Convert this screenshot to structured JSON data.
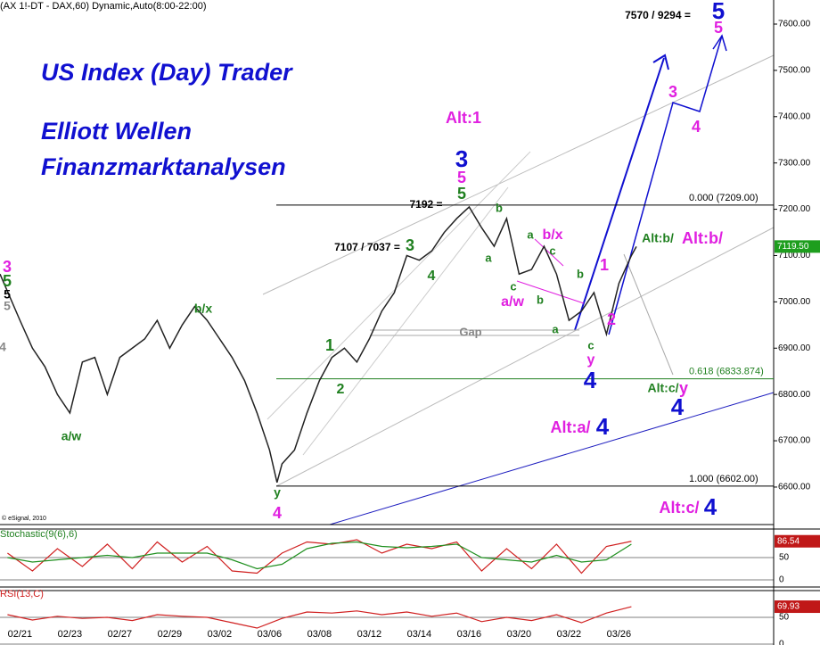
{
  "chart_data": {
    "type": "line",
    "header": "(AX 1!-DT - DAX,60) Dynamic,Auto(8:00-22:00)",
    "titles": [
      "US Index (Day) Trader",
      "Elliott Wellen",
      "Finanzmarktanalysen"
    ],
    "copyright": "© eSignal, 2010",
    "xlim": [
      -0.8,
      30.2
    ],
    "xticks": [
      {
        "value": 0,
        "label": "02/21"
      },
      {
        "value": 2,
        "label": "02/23"
      },
      {
        "value": 4,
        "label": "02/27"
      },
      {
        "value": 6,
        "label": "02/29"
      },
      {
        "value": 8,
        "label": "03/02"
      },
      {
        "value": 10,
        "label": "03/06"
      },
      {
        "value": 12,
        "label": "03/08"
      },
      {
        "value": 14,
        "label": "03/12"
      },
      {
        "value": 16,
        "label": "03/14"
      },
      {
        "value": 18,
        "label": "03/16"
      },
      {
        "value": 20,
        "label": "03/20"
      },
      {
        "value": 22,
        "label": "03/22"
      },
      {
        "value": 24,
        "label": "03/26"
      }
    ],
    "ylim": [
      6519,
      7652
    ],
    "yticks": [
      {
        "value": 6600,
        "label": "6600.00"
      },
      {
        "value": 6700,
        "label": "6700.00"
      },
      {
        "value": 6800,
        "label": "6800.00"
      },
      {
        "value": 6900,
        "label": "6900.00"
      },
      {
        "value": 7000,
        "label": "7000.00"
      },
      {
        "value": 7100,
        "label": "7100.00"
      },
      {
        "value": 7200,
        "label": "7200.00"
      },
      {
        "value": 7300,
        "label": "7300.00"
      },
      {
        "value": 7400,
        "label": "7400.00"
      },
      {
        "value": 7500,
        "label": "7500.00"
      },
      {
        "value": 7600,
        "label": "7600.00"
      }
    ],
    "series": [
      {
        "name": "DAX",
        "color": "#222222",
        "x": [
          -0.8,
          0,
          0.5,
          1,
          1.5,
          2,
          2.5,
          3,
          3.5,
          4,
          5,
          5.5,
          6,
          6.5,
          7,
          7.5,
          8,
          8.5,
          9,
          9.5,
          10,
          10.3,
          10.5,
          11,
          11.5,
          12,
          12.5,
          13,
          13.5,
          14,
          14.5,
          15,
          15.5,
          16,
          16.5,
          17,
          17.5,
          18,
          18.5,
          19,
          19.5,
          20,
          20.5,
          21,
          21.5,
          22,
          22.5,
          23,
          23.5,
          24,
          24.5,
          24.7
        ],
        "values": [
          7060,
          6960,
          6900,
          6860,
          6800,
          6760,
          6870,
          6880,
          6800,
          6880,
          6920,
          6960,
          6900,
          6950,
          6990,
          6960,
          6920,
          6880,
          6830,
          6760,
          6680,
          6610,
          6650,
          6680,
          6760,
          6830,
          6880,
          6900,
          6870,
          6920,
          6980,
          7020,
          7100,
          7090,
          7110,
          7150,
          7180,
          7205,
          7160,
          7120,
          7180,
          7060,
          7070,
          7120,
          7060,
          6960,
          6980,
          7020,
          6930,
          7040,
          7100,
          7119.5
        ]
      }
    ],
    "last_value": {
      "value": 7119.5,
      "label": "7119.50"
    },
    "fib_levels": [
      {
        "value": 7209,
        "label": "0.000 (7209.00)",
        "color": "#000000"
      },
      {
        "value": 6833.874,
        "label": "0.618 (6833.874)",
        "color": "#208020"
      },
      {
        "value": 6602,
        "label": "1.000 (6602.00)",
        "color": "#000000"
      }
    ],
    "annotations": [
      {
        "text": "3",
        "color": "#e020e0"
      },
      {
        "text": "5",
        "color": "#208020"
      },
      {
        "text": "5",
        "color": "#000000"
      },
      {
        "text": "5",
        "color": "#888888"
      },
      {
        "text": "4",
        "color": "#888888"
      },
      {
        "text": "b/x",
        "color": "#208020"
      },
      {
        "text": "a/w",
        "color": "#208020"
      },
      {
        "text": "y",
        "color": "#208020"
      },
      {
        "text": "4",
        "color": "#e020e0"
      },
      {
        "text": "1",
        "color": "#208020"
      },
      {
        "text": "2",
        "color": "#208020"
      },
      {
        "text": "3",
        "color": "#208020"
      },
      {
        "text": "4",
        "color": "#208020"
      },
      {
        "text": "5",
        "color": "#208020"
      },
      {
        "text": "5",
        "color": "#e020e0"
      },
      {
        "text": "3",
        "color": "#1010d0"
      },
      {
        "text": "Alt:1",
        "color": "#e020e0"
      },
      {
        "text": "7107 / 7037 =",
        "color": "#000000"
      },
      {
        "text": "7192 =",
        "color": "#000000"
      },
      {
        "text": "Gap",
        "color": "#888888"
      },
      {
        "text": "b",
        "color": "#208020"
      },
      {
        "text": "a",
        "color": "#208020"
      },
      {
        "text": "c",
        "color": "#208020"
      },
      {
        "text": "b",
        "color": "#208020"
      },
      {
        "text": "a/w",
        "color": "#e020e0"
      },
      {
        "text": "a",
        "color": "#208020"
      },
      {
        "text": "b/x",
        "color": "#e020e0"
      },
      {
        "text": "c",
        "color": "#208020"
      },
      {
        "text": "a",
        "color": "#208020"
      },
      {
        "text": "b",
        "color": "#208020"
      },
      {
        "text": "c",
        "color": "#208020"
      },
      {
        "text": "y",
        "color": "#e020e0"
      },
      {
        "text": "4",
        "color": "#1010d0"
      },
      {
        "text": "1",
        "color": "#e020e0"
      },
      {
        "text": "2",
        "color": "#e020e0"
      },
      {
        "text": "3",
        "color": "#e020e0"
      },
      {
        "text": "4",
        "color": "#e020e0"
      },
      {
        "text": "5",
        "color": "#e020e0"
      },
      {
        "text": "5",
        "color": "#1010d0"
      },
      {
        "text": "7570 / 9294 =",
        "color": "#000000"
      },
      {
        "text": "Alt:b/",
        "color": "#208020"
      },
      {
        "text": "Alt:b/",
        "color": "#e020e0"
      },
      {
        "text": "Alt:c/",
        "color": "#208020"
      },
      {
        "text": "y",
        "color": "#e020e0"
      },
      {
        "text": "4",
        "color": "#1010d0"
      },
      {
        "text": "Alt:a/",
        "color": "#e020e0"
      },
      {
        "text": "4",
        "color": "#1010d0"
      },
      {
        "text": "Alt:c/",
        "color": "#e020e0"
      },
      {
        "text": "4",
        "color": "#1010d0"
      }
    ],
    "stochastic": {
      "label": "Stochastic(9(6),6)",
      "ylim": [
        0,
        100
      ],
      "yticks": [
        50,
        0
      ],
      "last_label": "86.54",
      "x": [
        -0.5,
        0.5,
        1.5,
        2.5,
        3.5,
        4.5,
        5.5,
        6.5,
        7.5,
        8.5,
        9.5,
        10.5,
        11.5,
        12.5,
        13.5,
        14.5,
        15.5,
        16.5,
        17.5,
        18.5,
        19.5,
        20.5,
        21.5,
        22.5,
        23.5,
        24.5
      ],
      "series": [
        {
          "name": "%K",
          "color": "#d02020",
          "values": [
            60,
            20,
            70,
            30,
            80,
            25,
            85,
            40,
            75,
            20,
            15,
            60,
            85,
            80,
            90,
            60,
            80,
            70,
            85,
            20,
            70,
            25,
            80,
            15,
            75,
            86.54
          ]
        },
        {
          "name": "%D",
          "color": "#209020",
          "values": [
            50,
            40,
            45,
            50,
            55,
            50,
            60,
            60,
            60,
            45,
            25,
            35,
            70,
            82,
            85,
            75,
            72,
            75,
            80,
            50,
            45,
            40,
            55,
            40,
            45,
            80
          ]
        }
      ]
    },
    "rsi": {
      "label": "RSI(13,C)",
      "ylim": [
        0,
        100
      ],
      "yticks": [
        50,
        0
      ],
      "last_label": "69.93",
      "color": "#d02020",
      "x": [
        -0.5,
        0.5,
        1.5,
        2.5,
        3.5,
        4.5,
        5.5,
        6.5,
        7.5,
        8.5,
        9.5,
        10.5,
        11.5,
        12.5,
        13.5,
        14.5,
        15.5,
        16.5,
        17.5,
        18.5,
        19.5,
        20.5,
        21.5,
        22.5,
        23.5,
        24.5
      ],
      "values": [
        55,
        45,
        52,
        48,
        50,
        44,
        55,
        52,
        50,
        40,
        30,
        48,
        60,
        58,
        62,
        55,
        60,
        52,
        58,
        42,
        50,
        44,
        55,
        40,
        58,
        69.93
      ]
    }
  }
}
